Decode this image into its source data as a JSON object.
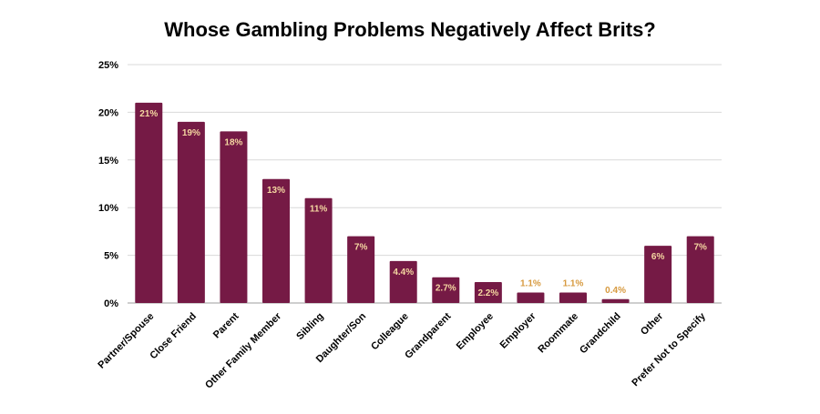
{
  "chart_data": {
    "type": "bar",
    "title": "Whose Gambling Problems Negatively Affect Brits?",
    "xlabel": "",
    "ylabel": "",
    "categories": [
      "Partner/Spouse",
      "Close Friend",
      "Parent",
      "Other Family Member",
      "Sibling",
      "Daughter/Son",
      "Colleague",
      "Grandparent",
      "Employee",
      "Employer",
      "Roommate",
      "Grandchild",
      "Other",
      "Prefer Not to Specify"
    ],
    "values": [
      21,
      19,
      18,
      13,
      11,
      7,
      4.4,
      2.7,
      2.2,
      1.1,
      1.1,
      0.4,
      6,
      7
    ],
    "data_labels": [
      "21%",
      "19%",
      "18%",
      "13%",
      "11%",
      "7%",
      "4.4%",
      "2.7%",
      "2.2%",
      "1.1%",
      "1.1%",
      "0.4%",
      "6%",
      "7%"
    ],
    "ylim": [
      0,
      25
    ],
    "yticks": [
      0,
      5,
      10,
      15,
      20,
      25
    ],
    "ytick_labels": [
      "0%",
      "5%",
      "10%",
      "15%",
      "20%",
      "25%"
    ],
    "grid": true,
    "legend": "none",
    "colors": {
      "bar": "#751a45",
      "label_inside": "#f5d7a1",
      "label_outside": "#d79a3f",
      "grid": "#d9d9d9",
      "axis_text": "#000000"
    }
  }
}
